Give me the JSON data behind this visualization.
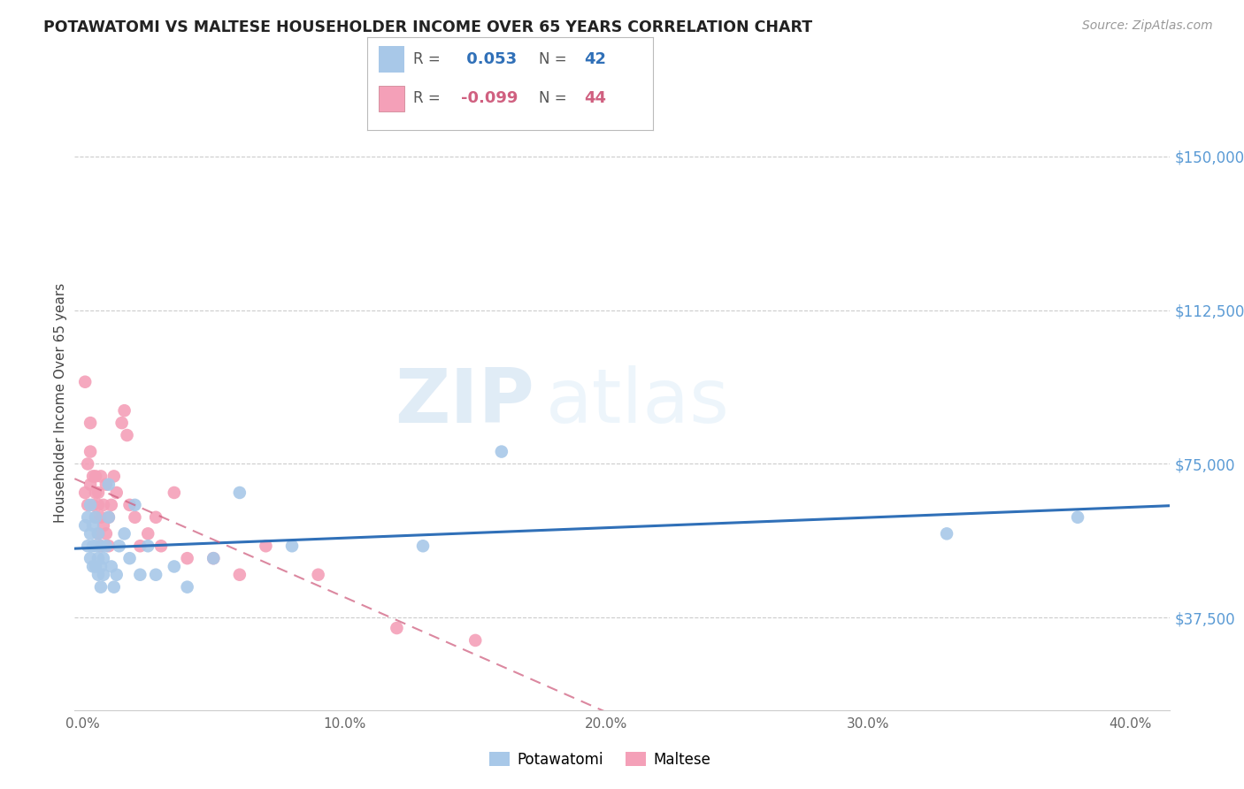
{
  "title": "POTAWATOMI VS MALTESE HOUSEHOLDER INCOME OVER 65 YEARS CORRELATION CHART",
  "source": "Source: ZipAtlas.com",
  "ylabel": "Householder Income Over 65 years",
  "xlabel_ticks": [
    "0.0%",
    "10.0%",
    "20.0%",
    "30.0%",
    "40.0%"
  ],
  "xlabel_vals": [
    0.0,
    0.1,
    0.2,
    0.3,
    0.4
  ],
  "ytick_labels": [
    "$37,500",
    "$75,000",
    "$112,500",
    "$150,000"
  ],
  "ytick_vals": [
    37500,
    75000,
    112500,
    150000
  ],
  "ylim": [
    15000,
    165000
  ],
  "xlim": [
    -0.003,
    0.415
  ],
  "watermark_zip": "ZIP",
  "watermark_atlas": "atlas",
  "blue_color": "#a8c8e8",
  "pink_color": "#f4a0b8",
  "blue_line_color": "#3070b8",
  "pink_line_color": "#d06080",
  "legend_R_blue": "0.053",
  "legend_N_blue": "42",
  "legend_R_pink": "-0.099",
  "legend_N_pink": "44",
  "potawatomi_x": [
    0.001,
    0.002,
    0.002,
    0.003,
    0.003,
    0.003,
    0.004,
    0.004,
    0.004,
    0.005,
    0.005,
    0.005,
    0.006,
    0.006,
    0.006,
    0.007,
    0.007,
    0.007,
    0.008,
    0.008,
    0.009,
    0.01,
    0.01,
    0.011,
    0.012,
    0.013,
    0.014,
    0.016,
    0.018,
    0.02,
    0.022,
    0.025,
    0.028,
    0.035,
    0.04,
    0.05,
    0.06,
    0.08,
    0.13,
    0.16,
    0.33,
    0.38
  ],
  "potawatomi_y": [
    60000,
    55000,
    62000,
    58000,
    52000,
    65000,
    60000,
    55000,
    50000,
    62000,
    55000,
    50000,
    58000,
    52000,
    48000,
    55000,
    50000,
    45000,
    52000,
    48000,
    55000,
    70000,
    62000,
    50000,
    45000,
    48000,
    55000,
    58000,
    52000,
    65000,
    48000,
    55000,
    48000,
    50000,
    45000,
    52000,
    68000,
    55000,
    55000,
    78000,
    58000,
    62000
  ],
  "maltese_x": [
    0.001,
    0.001,
    0.002,
    0.002,
    0.003,
    0.003,
    0.003,
    0.004,
    0.004,
    0.005,
    0.005,
    0.005,
    0.006,
    0.006,
    0.006,
    0.007,
    0.007,
    0.007,
    0.008,
    0.008,
    0.009,
    0.009,
    0.01,
    0.01,
    0.011,
    0.012,
    0.013,
    0.015,
    0.016,
    0.017,
    0.018,
    0.02,
    0.022,
    0.025,
    0.028,
    0.03,
    0.035,
    0.04,
    0.05,
    0.06,
    0.07,
    0.09,
    0.12,
    0.15
  ],
  "maltese_y": [
    68000,
    95000,
    65000,
    75000,
    70000,
    78000,
    85000,
    65000,
    72000,
    68000,
    62000,
    72000,
    65000,
    58000,
    68000,
    62000,
    55000,
    72000,
    60000,
    65000,
    58000,
    70000,
    62000,
    55000,
    65000,
    72000,
    68000,
    85000,
    88000,
    82000,
    65000,
    62000,
    55000,
    58000,
    62000,
    55000,
    68000,
    52000,
    52000,
    48000,
    55000,
    48000,
    35000,
    32000
  ]
}
